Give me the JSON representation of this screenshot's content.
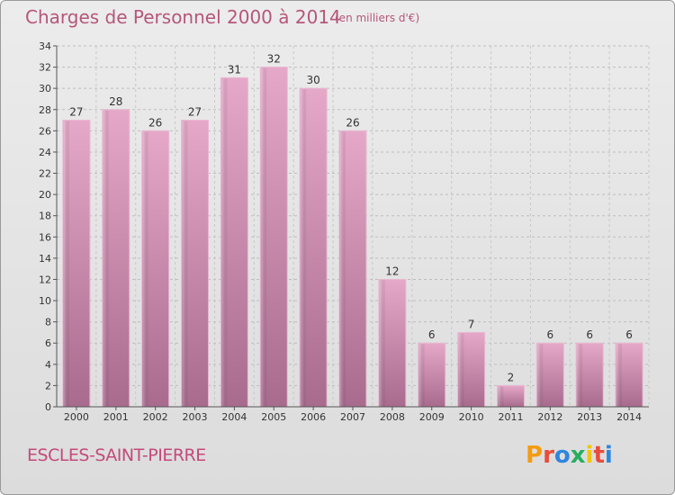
{
  "chart_data": {
    "type": "bar",
    "title": "Charges de Personnel 2000 à 2014",
    "subtitle": "(en milliers d'€)",
    "categories": [
      "2000",
      "2001",
      "2002",
      "2003",
      "2004",
      "2005",
      "2006",
      "2007",
      "2008",
      "2009",
      "2010",
      "2011",
      "2012",
      "2013",
      "2014"
    ],
    "values": [
      27,
      28,
      26,
      27,
      31,
      32,
      30,
      26,
      12,
      6,
      7,
      2,
      6,
      6,
      6
    ],
    "ylim": [
      0,
      34
    ],
    "yticks": [
      0,
      2,
      4,
      6,
      8,
      10,
      12,
      14,
      16,
      18,
      20,
      22,
      24,
      26,
      28,
      30,
      32,
      34
    ],
    "grid": true,
    "bar_color": "#d98bb4"
  },
  "commune_name": "ESCLES-SAINT-PIERRE",
  "logo": {
    "letters": [
      "P",
      "r",
      "o",
      "x",
      "i",
      "t",
      "i"
    ],
    "colors": [
      "#f39c12",
      "#e74c3c",
      "#2e86de",
      "#27ae60",
      "#f1c40f",
      "#e74c3c",
      "#2e86de"
    ]
  }
}
